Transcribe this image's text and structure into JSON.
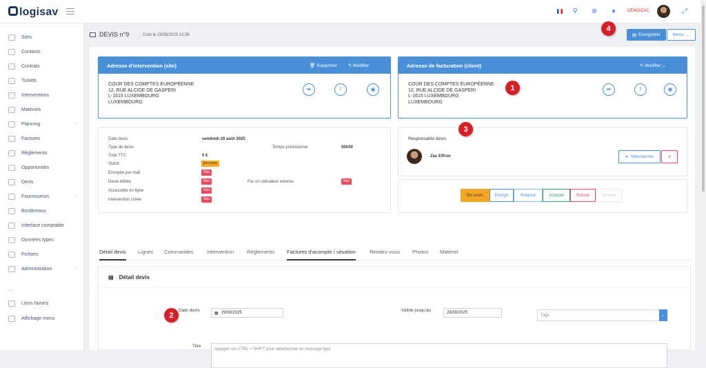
{
  "app": {
    "logo": "logisav"
  },
  "topbar": {
    "user_label": "DEMO\\ZAC"
  },
  "sidebar": {
    "items": [
      {
        "label": "Sites"
      },
      {
        "label": "Contacts"
      },
      {
        "label": "Contrats"
      },
      {
        "label": "Tickets"
      },
      {
        "label": "Interventions"
      },
      {
        "label": "Matériels"
      },
      {
        "label": "Planning"
      },
      {
        "label": "Factures"
      },
      {
        "label": "Règlements"
      },
      {
        "label": "Opportunités"
      },
      {
        "label": "Devis"
      },
      {
        "label": "Fournisseurs"
      },
      {
        "label": "Bordereaux"
      },
      {
        "label": "Interface comptable"
      },
      {
        "label": "Données types"
      },
      {
        "label": "Fichiers"
      },
      {
        "label": "Administration"
      }
    ],
    "more": "...",
    "favorites": "Liens favoris",
    "display_menu": "Affichage menu"
  },
  "header": {
    "title": "DEVIS n°9",
    "created": "Créé le 29/08/2025 13:36",
    "save_label": "Enregistrer",
    "menu_label": "Menu"
  },
  "address_intervention": {
    "title": "Adresse d'intervention (site)",
    "delete_label": "Supprimer",
    "edit_label": "Modifier",
    "lines": [
      "COUR DES COMPTES EUROPÉENNE",
      "12, RUE ALCIDE DE GASPERI",
      "L-1615 LUXEMBOURG",
      "LUXEMBOURG"
    ]
  },
  "address_billing": {
    "title": "Adresse de facturation (client)",
    "edit_label": "Modifier",
    "lines": [
      "COUR DES COMPTES EUROPÉENNE",
      "12, RUE ALCIDE DE GASPERI",
      "L-1615 LUXEMBOURG",
      "LUXEMBOURG"
    ]
  },
  "info": {
    "date_label": "Date devis",
    "date_value": "vendredi 29 août 2025",
    "type_label": "Type de devis",
    "time_label": "Temps prévisionnel",
    "time_value": "00h00",
    "total_label": "Total TTC",
    "total_value": "0 €",
    "status_label": "Statut",
    "status_value": "En cours",
    "mail_label": "Envoyée par mail",
    "mail_value": "Non",
    "edited_label": "Devis éditée",
    "edited_value": "Non",
    "external_label": "Par un utilisateur externe",
    "external_value": "Non",
    "online_label": "Accessible en ligne",
    "online_value": "Non",
    "intervention_label": "Intervention créée",
    "intervention_value": "Non"
  },
  "responsible": {
    "title": "Responsable devis",
    "name": "Zac Effron",
    "select_label": "Sélectionner",
    "remove_label": "×"
  },
  "status_buttons": [
    "En cours",
    "Envoyé",
    "Relancé",
    "Accepté",
    "Refusé",
    "Terminé"
  ],
  "tabs": [
    "Détail devis",
    "Lignes",
    "Commandes",
    "Intervention",
    "Règlements",
    "Factures d'acompte / situation",
    "Rendez-vous",
    "Photos",
    "Matériel"
  ],
  "detail": {
    "title": "Détail devis",
    "date_label": "Date devis",
    "date_value": "29/08/2025",
    "valid_label": "Valide jusqu'au",
    "valid_value": "28/09/2025",
    "tags_placeholder": "Tags",
    "title_label": "Titre",
    "title_placeholder": "Appuyer sur CTRL + SHIFT pour sélectionner un message type"
  },
  "markers": [
    "1",
    "2",
    "3",
    "4"
  ],
  "colors": {
    "primary": "#4a90d9",
    "danger": "#e84a5f",
    "warning": "#f5a623",
    "marker": "#d61f26"
  }
}
